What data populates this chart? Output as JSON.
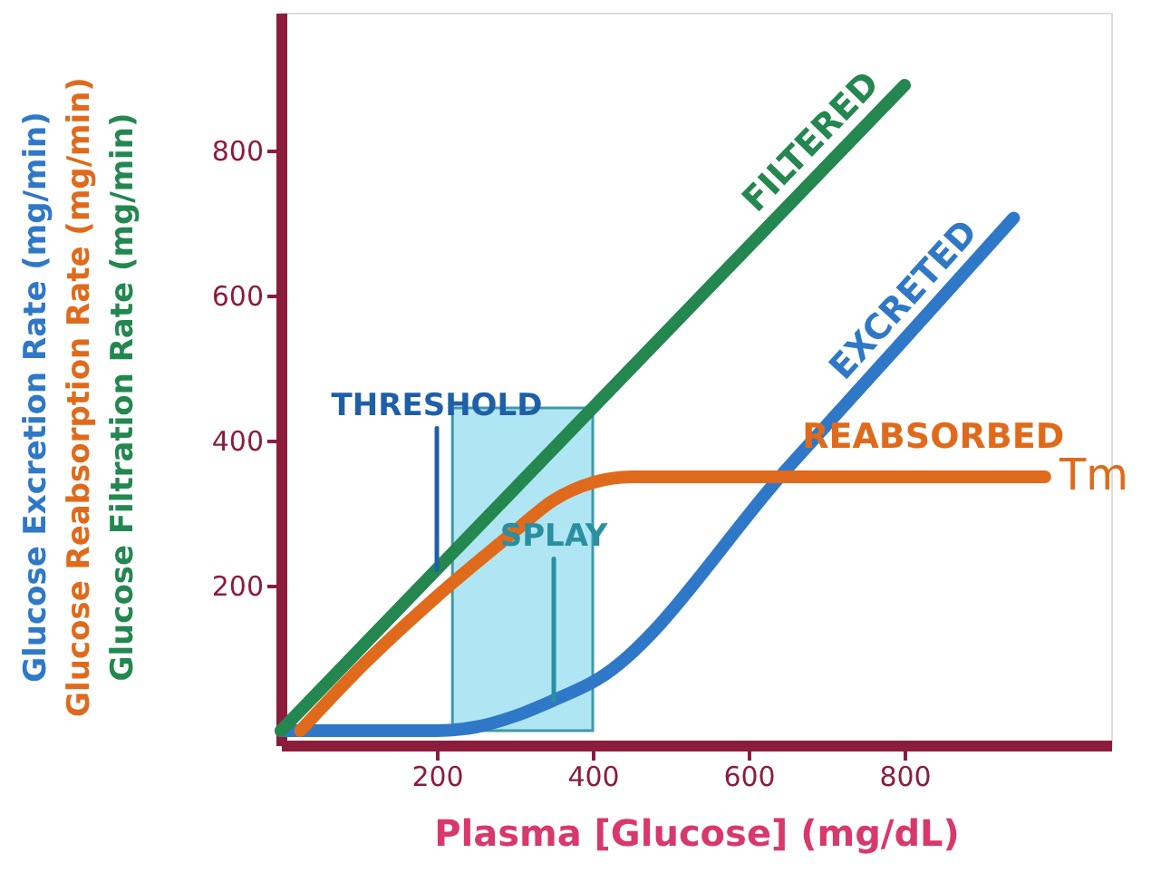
{
  "chart_data": {
    "type": "line",
    "xlabel": "Plasma [Glucose] (mg/dL)",
    "ylabel": "Glucose Excretion Rate (mg/min)\nGlucose Reabsorption Rate (mg/min)\nGlucose Filtration Rate (mg/min)",
    "xlim": [
      0,
      1065
    ],
    "ylim": [
      -20,
      990
    ],
    "xticks": [
      200,
      400,
      600,
      800
    ],
    "yticks": [
      200,
      400,
      600,
      800
    ],
    "grid": false,
    "marker": "none",
    "line_style": "solid",
    "series": [
      {
        "name": "EXCRETED",
        "color": "#2f78c8",
        "x": [
          0,
          200,
          250,
          300,
          350,
          405,
          650,
          800,
          940
        ],
        "values": [
          0,
          0,
          5,
          20,
          42,
          70,
          362,
          540,
          707
        ]
      },
      {
        "name": "REABSORBED",
        "color": "#e06a1b",
        "x": [
          25,
          100,
          200,
          300,
          350,
          400,
          450,
          980
        ],
        "values": [
          0,
          85,
          185,
          275,
          318,
          342,
          350,
          350
        ]
      },
      {
        "name": "FILTERED",
        "color": "#23874f",
        "x": [
          0,
          800
        ],
        "values": [
          0,
          890
        ]
      }
    ],
    "bands": [
      {
        "axis": "x",
        "from": 220,
        "to": 400,
        "color": "#a8e4f2"
      }
    ],
    "annotations": [
      {
        "text": "THRESHOLD",
        "x": 200,
        "y": 222
      },
      {
        "text": "SPLAY",
        "x": 350,
        "y": 42
      },
      {
        "text": "Tm",
        "x": 980,
        "y": 350
      }
    ]
  }
}
